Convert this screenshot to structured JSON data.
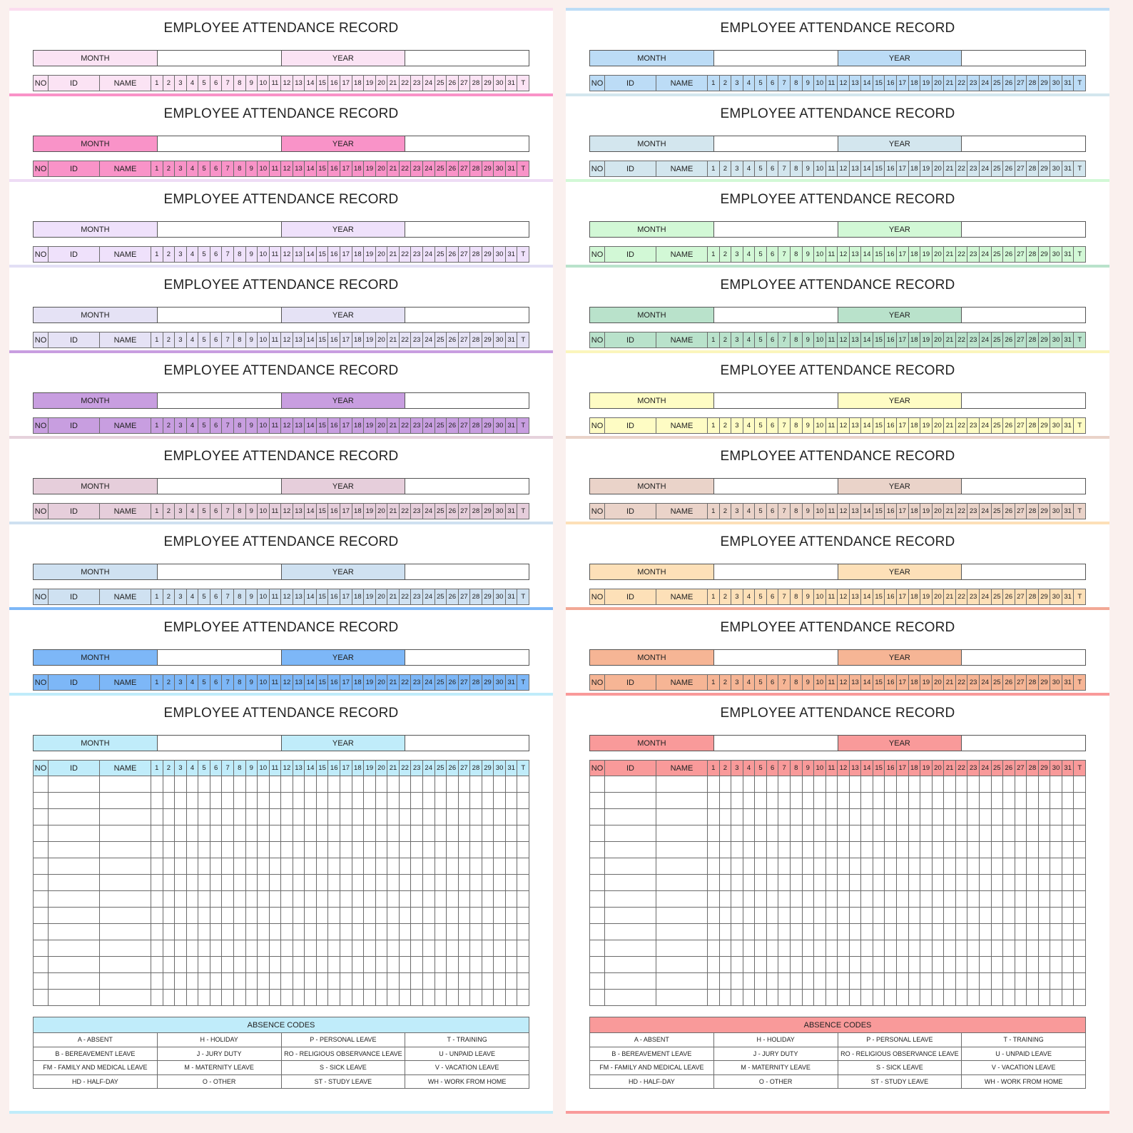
{
  "labels": {
    "title": "EMPLOYEE ATTENDANCE RECORD",
    "month": "MONTH",
    "year": "YEAR",
    "no": "NO",
    "id": "ID",
    "name": "NAME",
    "total": "T",
    "days": [
      "1",
      "2",
      "3",
      "4",
      "5",
      "6",
      "7",
      "8",
      "9",
      "10",
      "11",
      "12",
      "13",
      "14",
      "15",
      "16",
      "17",
      "18",
      "19",
      "20",
      "21",
      "22",
      "23",
      "24",
      "25",
      "26",
      "27",
      "28",
      "29",
      "30",
      "31"
    ]
  },
  "absence_codes": {
    "title": "ABSENCE CODES",
    "rows": [
      [
        "A - ABSENT",
        "H - HOLIDAY",
        "P - PERSONAL LEAVE",
        "T - TRAINING"
      ],
      [
        "B - BEREAVEMENT LEAVE",
        "J - JURY DUTY",
        "RO - RELIGIOUS OBSERVANCE LEAVE",
        "U - UNPAID LEAVE"
      ],
      [
        "FM - FAMILY AND MEDICAL LEAVE",
        "M - MATERNITY LEAVE",
        "S - SICK LEAVE",
        "V - VACATION LEAVE"
      ],
      [
        "HD - HALF-DAY",
        "O - OTHER",
        "ST - STUDY LEAVE",
        "WH - WORK FROM HOME"
      ]
    ]
  },
  "columns": [
    {
      "name": "left",
      "cards": [
        {
          "fill": "#fbe3f4",
          "band": "#fbdcef"
        },
        {
          "fill": "#f993c8",
          "band": "#f993c8"
        },
        {
          "fill": "#efe1fb",
          "band": "#eedcf5"
        },
        {
          "fill": "#e5e2f5",
          "band": "#e2dff5"
        },
        {
          "fill": "#c89ee0",
          "band": "#c89ee0"
        },
        {
          "fill": "#e6cedb",
          "band": "#e6d2dc"
        },
        {
          "fill": "#cfe1f1",
          "band": "#cfe1f1"
        },
        {
          "fill": "#7db7f7",
          "band": "#7db7f7"
        }
      ],
      "big": {
        "fill": "#c0ecfa",
        "band": "#c0ecfa"
      }
    },
    {
      "name": "right",
      "cards": [
        {
          "fill": "#bcdcf6",
          "band": "#bcdcf6"
        },
        {
          "fill": "#d3e6ee",
          "band": "#d3e6ee"
        },
        {
          "fill": "#d2f8d6",
          "band": "#d2f8d6"
        },
        {
          "fill": "#b9e2cb",
          "band": "#b9e2cb"
        },
        {
          "fill": "#fefcc4",
          "band": "#fbf5bc"
        },
        {
          "fill": "#ead3c9",
          "band": "#ead3c9"
        },
        {
          "fill": "#fde0b8",
          "band": "#fde0b8"
        },
        {
          "fill": "#f6b595",
          "band": "#f2a895"
        }
      ],
      "big": {
        "fill": "#f99a9a",
        "band": "#f99a9a"
      }
    }
  ]
}
